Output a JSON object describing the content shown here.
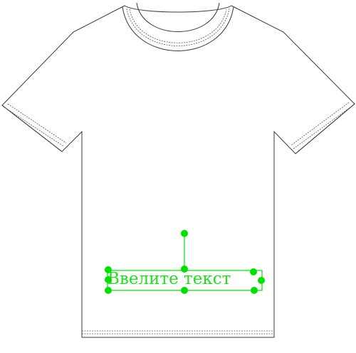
{
  "design": {
    "text_object": {
      "placeholder_text": "Ввелите текст",
      "text_color": "#22dd22",
      "selection_color": "#00e000"
    },
    "shirt": {
      "color": "#ffffff",
      "outline_color": "#3a3a3a"
    }
  }
}
